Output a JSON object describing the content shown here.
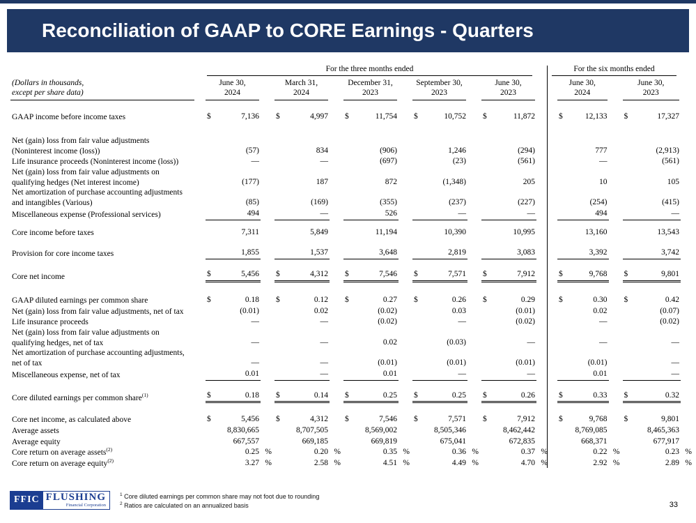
{
  "colors": {
    "accent": "#1f3864",
    "logo_blue": "#1b3d91"
  },
  "title": "Reconciliation of GAAP to CORE Earnings - Quarters",
  "page_number": "33",
  "footer": {
    "logo_box": "FFIC",
    "logo_name": "FLUSHING",
    "logo_sub": "Financial Corporation",
    "footnotes": [
      {
        "sup": "1",
        "text": "Core diluted earnings per common share may not foot due to rounding"
      },
      {
        "sup": "2",
        "text": "Ratios are calculated on an annualized basis"
      }
    ]
  },
  "table": {
    "currency_symbol": "$",
    "percent_symbol": "%",
    "corner_label": [
      "(Dollars in thousands,",
      "except per share data)"
    ],
    "group_headers": [
      {
        "label": "For the three months ended",
        "span": 5
      },
      {
        "label": "For the six months ended",
        "span": 2
      }
    ],
    "columns": [
      {
        "month": "June 30,",
        "year": "2024"
      },
      {
        "month": "March 31,",
        "year": "2024"
      },
      {
        "month": "December 31,",
        "year": "2023"
      },
      {
        "month": "September 30,",
        "year": "2023"
      },
      {
        "month": "June 30,",
        "year": "2023"
      },
      {
        "month": "June 30,",
        "year": "2024"
      },
      {
        "month": "June 30,",
        "year": "2023"
      }
    ],
    "rows": [
      {
        "type": "spacer",
        "h": 16
      },
      {
        "label": [
          "GAAP income before income taxes"
        ],
        "dollar": true,
        "values": [
          "7,136",
          "4,997",
          "11,754",
          "10,752",
          "11,872",
          "12,133",
          "17,327"
        ]
      },
      {
        "type": "spacer",
        "h": 19
      },
      {
        "label": [
          "Net (gain) loss from fair value adjustments",
          "(Noninterest income (loss))"
        ],
        "values": [
          "(57)",
          "834",
          "(906)",
          "1,246",
          "(294)",
          "777",
          "(2,913)"
        ]
      },
      {
        "label": [
          "Life insurance proceeds (Noninterest income (loss))"
        ],
        "values": [
          "—",
          "—",
          "(697)",
          "(23)",
          "(561)",
          "—",
          "(561)"
        ]
      },
      {
        "label": [
          "Net (gain) loss from fair value adjustments on",
          "qualifying hedges (Net interest income)"
        ],
        "values": [
          "(177)",
          "187",
          "872",
          "(1,348)",
          "205",
          "10",
          "105"
        ]
      },
      {
        "label": [
          "Net amortization of purchase accounting adjustments",
          "and intangibles (Various)"
        ],
        "values": [
          "(85)",
          "(169)",
          "(355)",
          "(237)",
          "(227)",
          "(254)",
          "(415)"
        ]
      },
      {
        "label": [
          "Miscellaneous expense  (Professional services)"
        ],
        "values": [
          "494",
          "—",
          "526",
          "—",
          "—",
          "494",
          "—"
        ],
        "underline": 1
      },
      {
        "type": "spacer",
        "h": 10
      },
      {
        "label": [
          "Core income before taxes"
        ],
        "values": [
          "7,311",
          "5,849",
          "11,194",
          "10,390",
          "10,995",
          "13,160",
          "13,543"
        ]
      },
      {
        "type": "spacer",
        "h": 14
      },
      {
        "label": [
          "Provision for core income taxes"
        ],
        "values": [
          "1,855",
          "1,537",
          "3,648",
          "2,819",
          "3,083",
          "3,392",
          "3,742"
        ],
        "underline": 1
      },
      {
        "type": "spacer",
        "h": 14
      },
      {
        "label": [
          "Core net income"
        ],
        "dollar": true,
        "values": [
          "5,456",
          "4,312",
          "7,546",
          "7,571",
          "7,912",
          "9,768",
          "9,801"
        ],
        "underline": 2
      },
      {
        "type": "spacer",
        "h": 18
      },
      {
        "label": [
          "GAAP diluted earnings per common share"
        ],
        "dollar": true,
        "values": [
          "0.18",
          "0.12",
          "0.27",
          "0.26",
          "0.29",
          "0.30",
          "0.42"
        ]
      },
      {
        "label": [
          "Net (gain) loss from fair value adjustments, net of tax"
        ],
        "values": [
          "(0.01)",
          "0.02",
          "(0.02)",
          "0.03",
          "(0.01)",
          "0.02",
          "(0.07)"
        ]
      },
      {
        "label": [
          "Life insurance proceeds"
        ],
        "values": [
          "—",
          "—",
          "(0.02)",
          "—",
          "(0.02)",
          "—",
          "(0.02)"
        ]
      },
      {
        "label": [
          "Net (gain) loss from fair value adjustments on",
          "qualifying hedges, net of tax"
        ],
        "values": [
          "—",
          "—",
          "0.02",
          "(0.03)",
          "—",
          "—",
          "—"
        ]
      },
      {
        "label": [
          "Net amortization of purchase accounting adjustments,",
          "net of tax"
        ],
        "values": [
          "—",
          "—",
          "(0.01)",
          "(0.01)",
          "(0.01)",
          "(0.01)",
          "—"
        ]
      },
      {
        "label": [
          "Miscellaneous expense, net of tax"
        ],
        "values": [
          "0.01",
          "—",
          "0.01",
          "—",
          "—",
          "0.01",
          "—"
        ],
        "underline": 1
      },
      {
        "type": "spacer",
        "h": 14
      },
      {
        "label": [
          "Core diluted earnings per common share"
        ],
        "sup": "(1)",
        "dollar": true,
        "values": [
          "0.18",
          "0.14",
          "0.25",
          "0.25",
          "0.26",
          "0.33",
          "0.32"
        ],
        "underline": 2
      },
      {
        "type": "spacer",
        "h": 16
      },
      {
        "label": [
          "Core net income, as calculated above"
        ],
        "dollar": true,
        "values": [
          "5,456",
          "4,312",
          "7,546",
          "7,571",
          "7,912",
          "9,768",
          "9,801"
        ]
      },
      {
        "label": [
          "Average assets"
        ],
        "values": [
          "8,830,665",
          "8,707,505",
          "8,569,002",
          "8,505,346",
          "8,462,442",
          "8,769,085",
          "8,465,363"
        ]
      },
      {
        "label": [
          "Average equity"
        ],
        "values": [
          "667,557",
          "669,185",
          "669,819",
          "675,041",
          "672,835",
          "668,371",
          "677,917"
        ]
      },
      {
        "label": [
          "Core return on average assets"
        ],
        "sup": "(2)",
        "percent": true,
        "values": [
          "0.25",
          "0.20",
          "0.35",
          "0.36",
          "0.37",
          "0.22",
          "0.23"
        ]
      },
      {
        "label": [
          "Core return on average equity"
        ],
        "sup": "(2)",
        "percent": true,
        "values": [
          "3.27",
          "2.58",
          "4.51",
          "4.49",
          "4.70",
          "2.92",
          "2.89"
        ]
      }
    ]
  }
}
